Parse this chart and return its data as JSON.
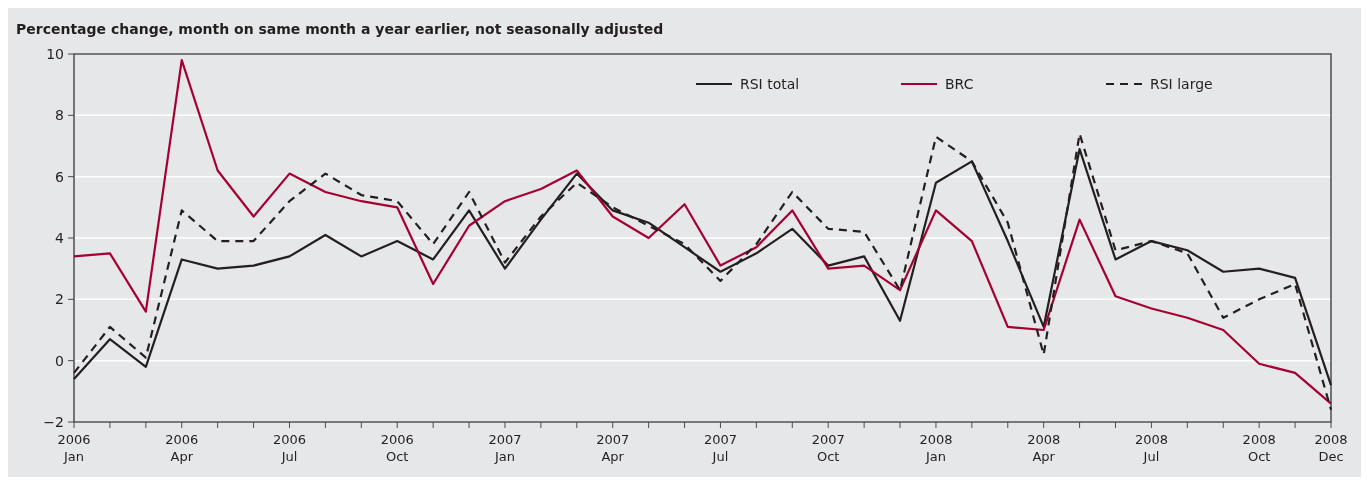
{
  "chart_data": {
    "type": "line",
    "title": "Percentage change, month on same month a year earlier, not seasonally adjusted",
    "categories": [
      "2006\nJan",
      null,
      null,
      "2006\nApr",
      null,
      null,
      "2006\nJul",
      null,
      null,
      "2006\nOct",
      null,
      null,
      "2007\nJan",
      null,
      null,
      "2007\nApr",
      null,
      null,
      "2007\nJul",
      null,
      null,
      "2007\nOct",
      null,
      null,
      "2008\nJan",
      null,
      null,
      "2008\nApr",
      null,
      null,
      "2008\nJul",
      null,
      null,
      "2008\nOct",
      null,
      "2008\nDec"
    ],
    "series": [
      {
        "name": "RSI total",
        "color": "#231f20",
        "line_style": "solid",
        "values": [
          -0.6,
          0.7,
          -0.2,
          3.3,
          3.0,
          3.1,
          3.4,
          4.1,
          3.4,
          3.9,
          3.3,
          4.9,
          3.0,
          4.6,
          6.1,
          4.9,
          4.5,
          3.7,
          2.9,
          3.5,
          4.3,
          3.1,
          3.4,
          1.3,
          5.8,
          6.5,
          3.9,
          1.1,
          6.9,
          3.3,
          3.9,
          3.6,
          2.9,
          3.0,
          2.7,
          -0.8
        ]
      },
      {
        "name": "BRC",
        "color": "#a50034",
        "line_style": "solid",
        "values": [
          3.4,
          3.5,
          1.6,
          9.8,
          6.2,
          4.7,
          6.1,
          5.5,
          5.2,
          5.0,
          2.5,
          4.4,
          5.2,
          5.6,
          6.2,
          4.7,
          4.0,
          5.1,
          3.1,
          3.7,
          4.9,
          3.0,
          3.1,
          2.3,
          4.9,
          3.9,
          1.1,
          1.0,
          4.6,
          2.1,
          1.7,
          1.4,
          1.0,
          -0.1,
          -0.4,
          -1.4
        ]
      },
      {
        "name": "RSI large",
        "color": "#231f20",
        "line_style": "dashed",
        "values": [
          -0.4,
          1.1,
          0.1,
          4.9,
          3.9,
          3.9,
          5.2,
          6.1,
          5.4,
          5.2,
          3.8,
          5.5,
          3.2,
          4.7,
          5.8,
          5.0,
          4.4,
          3.8,
          2.6,
          3.8,
          5.5,
          4.3,
          4.2,
          2.3,
          7.3,
          6.5,
          4.5,
          0.2,
          7.4,
          3.6,
          3.9,
          3.5,
          1.4,
          2.0,
          2.5,
          -1.6
        ]
      }
    ],
    "ylim": [
      -2,
      10
    ],
    "yticks": [
      {
        "value": -2,
        "label": "−2"
      },
      0,
      2,
      4,
      6,
      8,
      10
    ],
    "grid": "y",
    "legend": "top right",
    "marker": "none"
  }
}
